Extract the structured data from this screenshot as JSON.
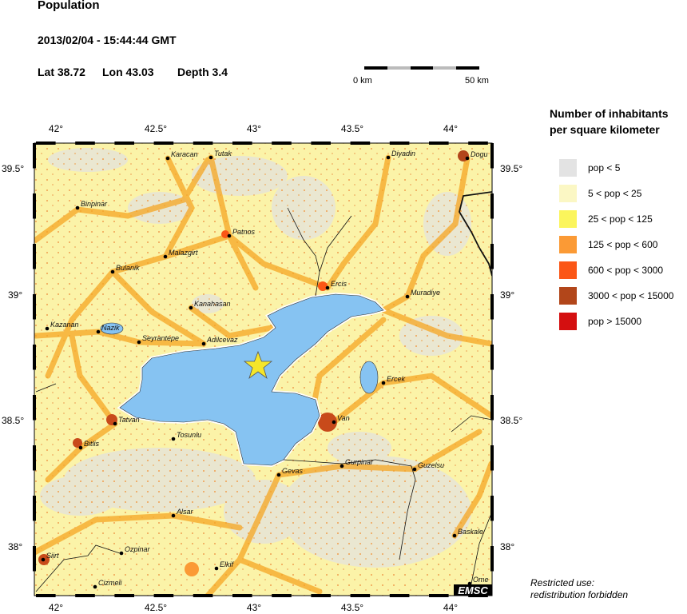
{
  "header": {
    "title": "Population",
    "datetime": "2013/02/04 - 15:44:44 GMT",
    "lat_label": "Lat 38.72",
    "lon_label": "Lon  43.03",
    "depth_label": "Depth  3.4"
  },
  "scale_bar": {
    "start_label": "0 km",
    "end_label": "50 km"
  },
  "axes": {
    "lon_ticks": [
      "42°",
      "42.5°",
      "43°",
      "43.5°",
      "44°"
    ],
    "lat_ticks": [
      "39.5°",
      "39°",
      "38.5°",
      "38°"
    ]
  },
  "epicenter": {
    "lat": 38.72,
    "lon": 43.03,
    "marker": "star-icon",
    "color": "#f5e62a"
  },
  "cities": [
    "Karacan",
    "Tutak",
    "Diyadin",
    "Dogu",
    "Binpinar",
    "Patnos",
    "Malazgirt",
    "Bulanik",
    "Ercis",
    "Muradiye",
    "Kanahasan",
    "Kazanan",
    "Nazik",
    "Seyrantepe",
    "Adilcevaz",
    "Ercek",
    "Van",
    "Tatvan",
    "Tosunlu",
    "Bitlis",
    "Gevas",
    "Gurpinar",
    "Guzelsu",
    "Alsar",
    "Baskale",
    "Ozpinar",
    "Siirt",
    "Elkif",
    "Cizmeli",
    "Ome"
  ],
  "legend": {
    "title_line1": "Number of inhabitants",
    "title_line2": "per square kilometer",
    "items": [
      {
        "label": "pop < 5",
        "color": "#e3e3e3"
      },
      {
        "label": "5 < pop < 25",
        "color": "#fbf7c4"
      },
      {
        "label": "25 < pop < 125",
        "color": "#fbf55c"
      },
      {
        "label": "125 < pop < 600",
        "color": "#fb9a35"
      },
      {
        "label": "600 < pop < 3000",
        "color": "#fb5616"
      },
      {
        "label": "3000 < pop < 15000",
        "color": "#b2461a"
      },
      {
        "label": "pop > 15000",
        "color": "#d40f10"
      }
    ]
  },
  "logo": "EMSC",
  "note": {
    "line1": "Restricted use:",
    "line2": "redistribution forbidden"
  },
  "colors": {
    "water": "#86c3f2",
    "land_base": "#fbf3a8"
  }
}
